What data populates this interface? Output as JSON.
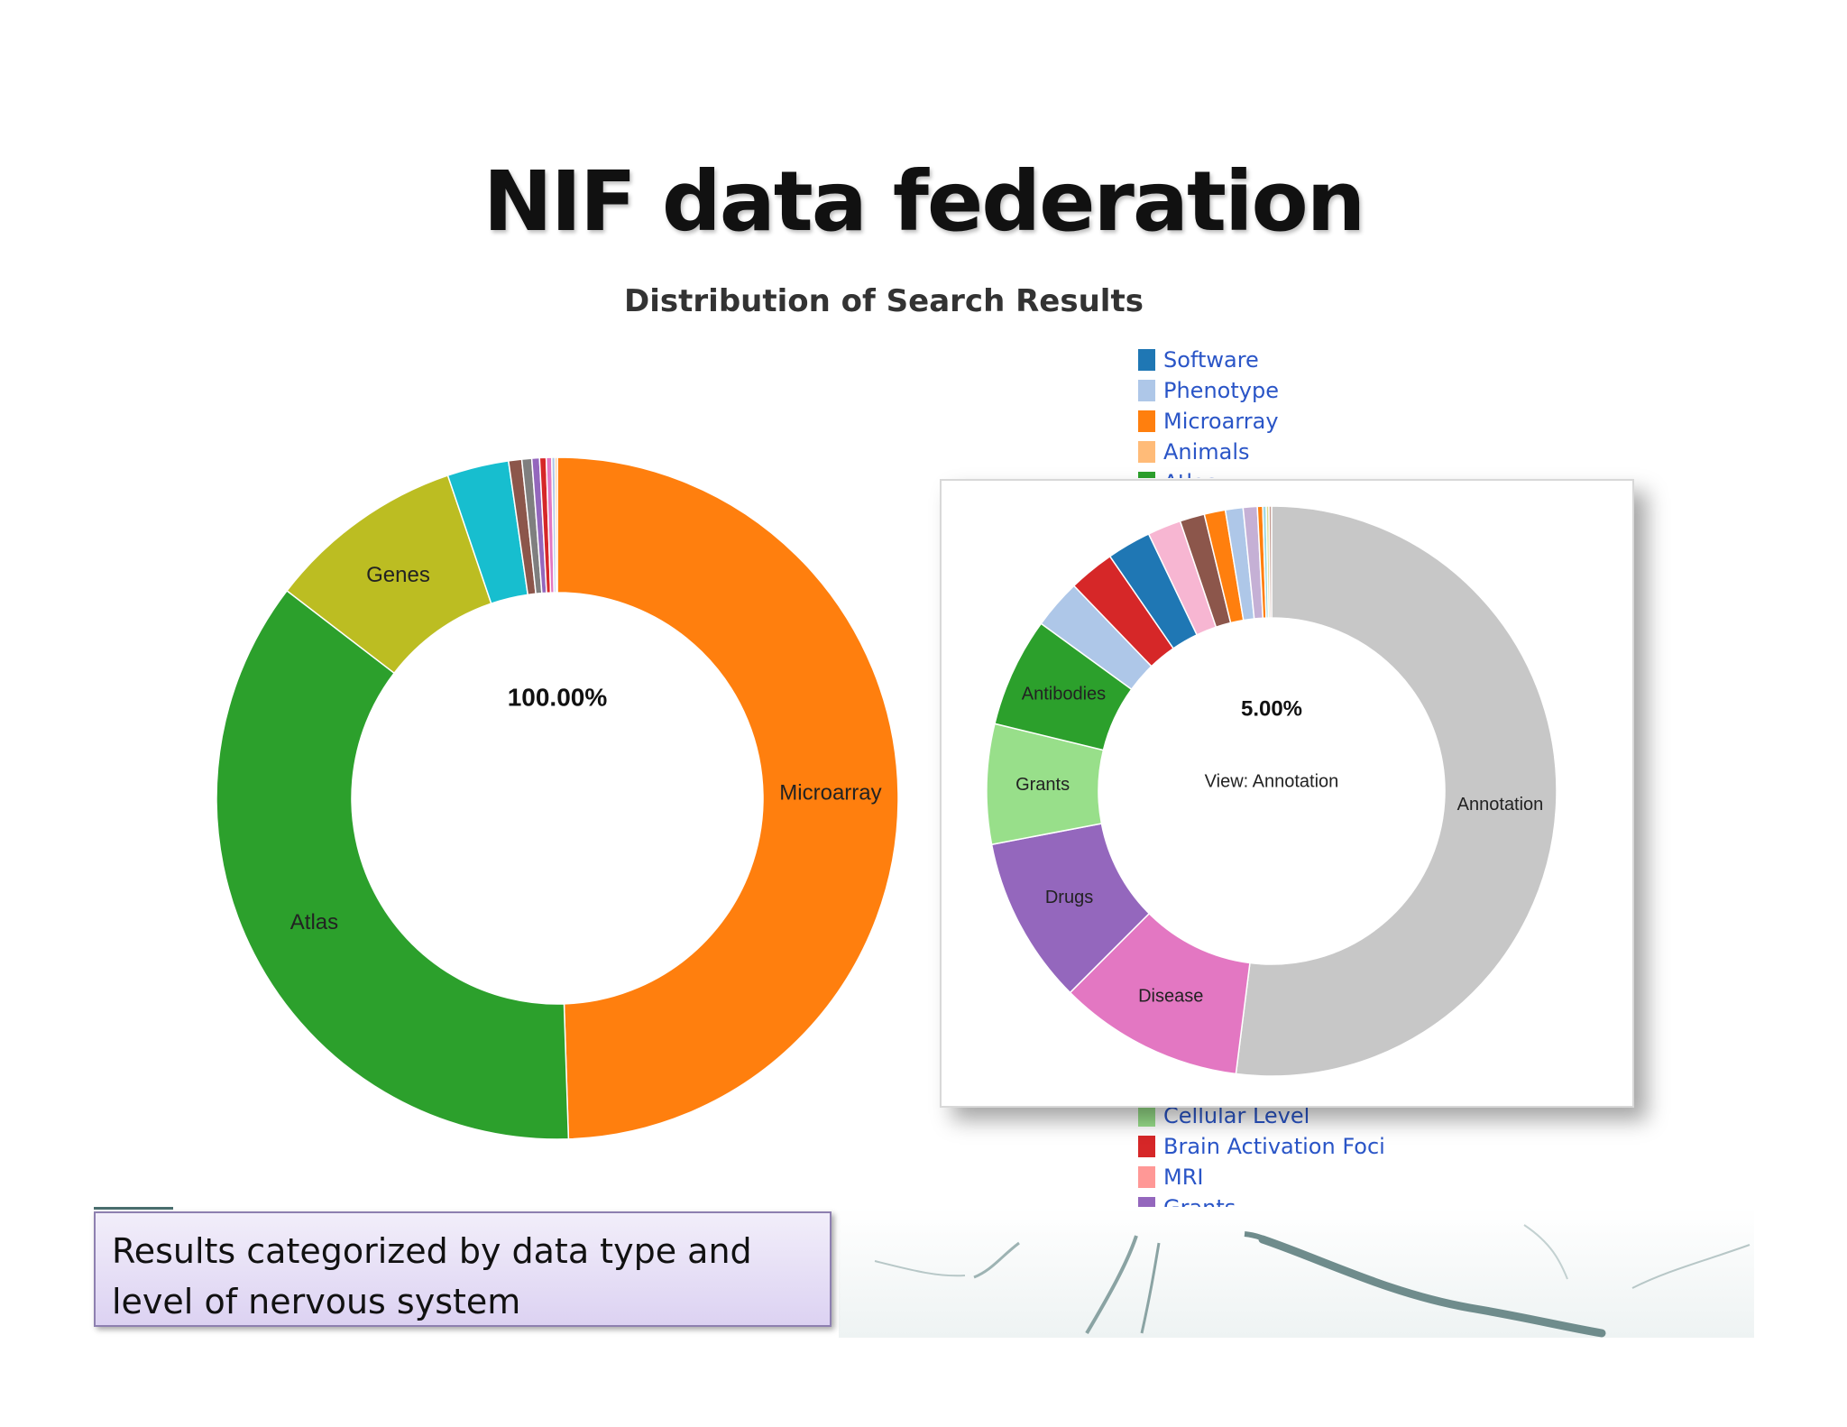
{
  "slide": {
    "title": "NIF data federation",
    "caption": "Results categorized by data type and level of nervous system"
  },
  "chart_data": [
    {
      "type": "pie",
      "title": "Distribution of Search Results",
      "center_label": "100.00%",
      "slices": [
        {
          "label": "Microarray",
          "value": 47.5,
          "color": "#ff7f0e",
          "show_label": true
        },
        {
          "label": "Atlas",
          "value": 34.5,
          "color": "#2ca02c",
          "show_label": true
        },
        {
          "label": "Genes",
          "value": 9.0,
          "color": "#bcbd22",
          "show_label": true
        },
        {
          "label": "",
          "value": 2.8,
          "color": "#17becf",
          "show_label": false
        },
        {
          "label": "",
          "value": 0.6,
          "color": "#8c564b",
          "show_label": false
        },
        {
          "label": "",
          "value": 0.45,
          "color": "#7f7f7f",
          "show_label": false
        },
        {
          "label": "",
          "value": 0.35,
          "color": "#9467bd",
          "show_label": false
        },
        {
          "label": "",
          "value": 0.3,
          "color": "#d62728",
          "show_label": false
        },
        {
          "label": "",
          "value": 0.25,
          "color": "#e377c2",
          "show_label": false
        },
        {
          "label": "",
          "value": 0.15,
          "color": "#aec7e8",
          "show_label": false
        },
        {
          "label": "",
          "value": 0.1,
          "color": "#ffbb78",
          "show_label": false
        }
      ],
      "legend": {
        "placement": "right",
        "top_items": [
          {
            "label": "Software",
            "color": "#1f77b4"
          },
          {
            "label": "Phenotype",
            "color": "#aec7e8"
          },
          {
            "label": "Microarray",
            "color": "#ff7f0e"
          },
          {
            "label": "Animals",
            "color": "#ffbb78"
          },
          {
            "label": "Atlas",
            "color": "#2ca02c"
          }
        ],
        "bottom_items": [
          {
            "label": "Cellular Level",
            "color": "#98df8a"
          },
          {
            "label": "Brain Activation Foci",
            "color": "#d62728"
          },
          {
            "label": "MRI",
            "color": "#ff9896"
          },
          {
            "label": "Grants",
            "color": "#9467bd"
          }
        ]
      }
    },
    {
      "type": "pie",
      "center_label": "5.00%",
      "center_sublabel": "View: Annotation",
      "slices": [
        {
          "label": "Annotation",
          "value": 52.0,
          "color": "#c7c7c7",
          "show_label": true
        },
        {
          "label": "Disease",
          "value": 10.5,
          "color": "#e377c2",
          "show_label": true
        },
        {
          "label": "Drugs",
          "value": 9.5,
          "color": "#9467bd",
          "show_label": true
        },
        {
          "label": "Grants",
          "value": 6.8,
          "color": "#98df8a",
          "show_label": true
        },
        {
          "label": "Antibodies",
          "value": 6.2,
          "color": "#2ca02c",
          "show_label": true
        },
        {
          "label": "",
          "value": 2.8,
          "color": "#aec7e8",
          "show_label": false
        },
        {
          "label": "",
          "value": 2.6,
          "color": "#d62728",
          "show_label": false
        },
        {
          "label": "",
          "value": 2.5,
          "color": "#1f77b4",
          "show_label": false
        },
        {
          "label": "",
          "value": 1.9,
          "color": "#f7b6d2",
          "show_label": false
        },
        {
          "label": "",
          "value": 1.4,
          "color": "#8c564b",
          "show_label": false
        },
        {
          "label": "",
          "value": 1.2,
          "color": "#ff7f0e",
          "show_label": false
        },
        {
          "label": "",
          "value": 1.0,
          "color": "#aec7e8",
          "show_label": false
        },
        {
          "label": "",
          "value": 0.8,
          "color": "#c5b0d5",
          "show_label": false
        },
        {
          "label": "",
          "value": 0.3,
          "color": "#ff7f0e",
          "show_label": false
        },
        {
          "label": "",
          "value": 0.2,
          "color": "#9edae5",
          "show_label": false
        },
        {
          "label": "",
          "value": 0.15,
          "color": "#dbdb8d",
          "show_label": false
        },
        {
          "label": "",
          "value": 0.15,
          "color": "#c49c94",
          "show_label": false
        }
      ]
    }
  ]
}
